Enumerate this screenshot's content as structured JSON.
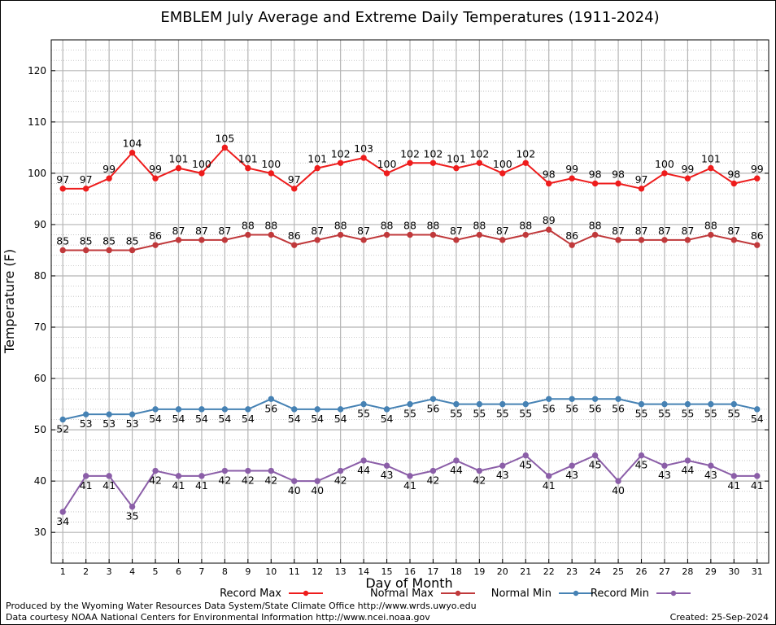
{
  "chart_data": {
    "type": "line",
    "title": "EMBLEM July Average and Extreme Daily Temperatures (1911-2024)",
    "xlabel": "Day of Month",
    "ylabel": "Temperature (F)",
    "xlim": [
      0.5,
      31.5
    ],
    "ylim": [
      24,
      126
    ],
    "x": [
      1,
      2,
      3,
      4,
      5,
      6,
      7,
      8,
      9,
      10,
      11,
      12,
      13,
      14,
      15,
      16,
      17,
      18,
      19,
      20,
      21,
      22,
      23,
      24,
      25,
      26,
      27,
      28,
      29,
      30,
      31
    ],
    "yticks": [
      30,
      40,
      50,
      60,
      70,
      80,
      90,
      100,
      110,
      120
    ],
    "grid": true,
    "legend_position": "bottom",
    "series": [
      {
        "name": "Record Max",
        "color": "#ee1c1c",
        "label_position": "above",
        "values": [
          97,
          97,
          99,
          104,
          99,
          101,
          100,
          105,
          101,
          100,
          97,
          101,
          102,
          103,
          100,
          102,
          102,
          101,
          102,
          100,
          102,
          98,
          99,
          98,
          98,
          97,
          100,
          99,
          101,
          98,
          99
        ]
      },
      {
        "name": "Normal Max",
        "color": "#c0393b",
        "label_position": "above",
        "values": [
          85,
          85,
          85,
          85,
          86,
          87,
          87,
          87,
          88,
          88,
          86,
          87,
          88,
          87,
          88,
          88,
          88,
          87,
          88,
          87,
          88,
          89,
          86,
          88,
          87,
          87,
          87,
          87,
          88,
          87,
          86
        ]
      },
      {
        "name": "Normal Min",
        "color": "#4682b4",
        "label_position": "below",
        "values": [
          52,
          53,
          53,
          53,
          54,
          54,
          54,
          54,
          54,
          56,
          54,
          54,
          54,
          55,
          54,
          55,
          56,
          55,
          55,
          55,
          55,
          56,
          56,
          56,
          56,
          55,
          55,
          55,
          55,
          55,
          54
        ]
      },
      {
        "name": "Record Min",
        "color": "#8b5ea8",
        "label_position": "below",
        "values": [
          34,
          41,
          41,
          35,
          42,
          41,
          41,
          42,
          42,
          42,
          40,
          40,
          42,
          44,
          43,
          41,
          42,
          44,
          42,
          43,
          45,
          41,
          43,
          45,
          40,
          45,
          43,
          44,
          43,
          41,
          41
        ]
      }
    ]
  },
  "footer": {
    "producer": "Produced by the Wyoming Water Resources Data System/State Climate Office http://www.wrds.uwyo.edu",
    "courtesy": "Data courtesy NOAA National Centers for Environmental Information http://www.ncei.noaa.gov",
    "created": "Created:  25-Sep-2024"
  }
}
